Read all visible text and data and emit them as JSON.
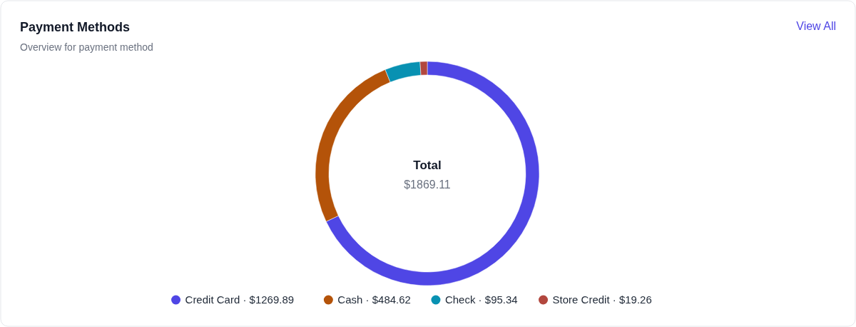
{
  "chart_data": {
    "type": "donut",
    "title": "Payment Methods",
    "subtitle": "Overview for payment method",
    "categories": [
      "Credit Card · $1269.89",
      "Cash · $484.62",
      "Check · $95.34",
      "Store Credit · $19.26"
    ],
    "values": [
      1269.89,
      484.62,
      95.34,
      19.26
    ],
    "colors": [
      "#4f46e5",
      "#b45309",
      "#0891b2",
      "#b2473e"
    ],
    "legend": "bottom",
    "annotations": [
      "Total",
      "$1869.11",
      "View All"
    ]
  }
}
